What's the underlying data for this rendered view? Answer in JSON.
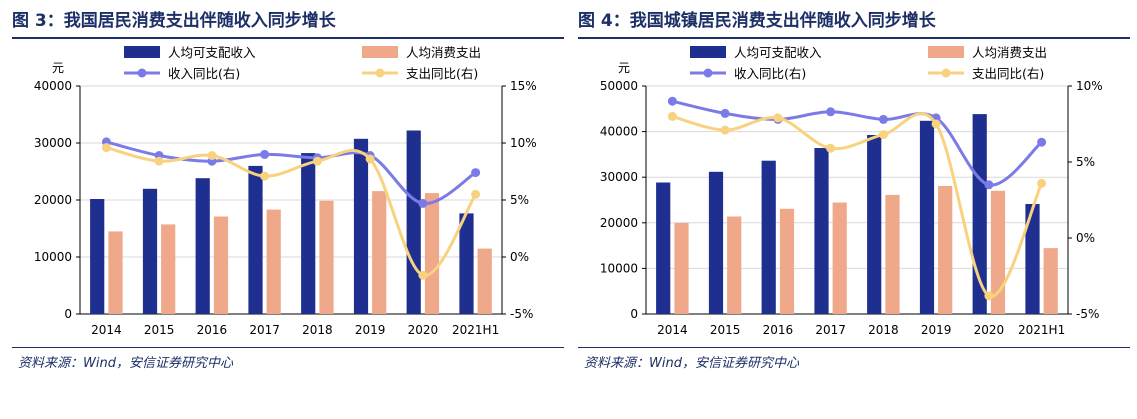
{
  "panels": [
    {
      "title": "图 3：我国居民消费支出伴随收入同步增长",
      "source": "资料来源：Wind，安信证券研究中心"
    },
    {
      "title": "图 4：我国城镇居民消费支出伴随收入同步增长",
      "source": "资料来源：Wind，安信证券研究中心"
    }
  ],
  "chart_data": [
    {
      "type": "bar",
      "title": "图 3：我国居民消费支出伴随收入同步增长",
      "ylabel": "元",
      "categories": [
        "2014",
        "2015",
        "2016",
        "2017",
        "2018",
        "2019",
        "2020",
        "2021H1"
      ],
      "ylim": [
        0,
        40000
      ],
      "yticks": [
        "0",
        "10000",
        "20000",
        "30000",
        "40000"
      ],
      "y2lim": [
        -5,
        15
      ],
      "y2ticks": [
        "-5%",
        "0%",
        "5%",
        "10%",
        "15%"
      ],
      "legend_position": "top",
      "series": [
        {
          "name": "人均可支配收入",
          "kind": "bar",
          "axis": "left",
          "color": "#1f2f8f",
          "values": [
            20167,
            21966,
            23821,
            25974,
            28228,
            30733,
            32189,
            17642
          ]
        },
        {
          "name": "人均消费支出",
          "kind": "bar",
          "axis": "left",
          "color": "#f0a88a",
          "values": [
            14491,
            15712,
            17111,
            18322,
            19853,
            21559,
            21210,
            11471
          ]
        },
        {
          "name": "收入同比(右)",
          "kind": "line",
          "axis": "right",
          "color": "#7b7be8",
          "values": [
            10.1,
            8.9,
            8.4,
            9.0,
            8.7,
            8.9,
            4.7,
            7.4
          ]
        },
        {
          "name": "支出同比(右)",
          "kind": "line",
          "axis": "right",
          "color": "#f8d27f",
          "values": [
            9.6,
            8.4,
            8.9,
            7.1,
            8.4,
            8.6,
            -1.6,
            5.5
          ]
        }
      ]
    },
    {
      "type": "bar",
      "title": "图 4：我国城镇居民消费支出伴随收入同步增长",
      "ylabel": "元",
      "categories": [
        "2014",
        "2015",
        "2016",
        "2017",
        "2018",
        "2019",
        "2020",
        "2021H1"
      ],
      "ylim": [
        0,
        50000
      ],
      "yticks": [
        "0",
        "10000",
        "20000",
        "30000",
        "40000",
        "50000"
      ],
      "y2lim": [
        -5,
        10
      ],
      "y2ticks": [
        "-5%",
        "0%",
        "5%",
        "10%"
      ],
      "legend_position": "top",
      "series": [
        {
          "name": "人均可支配收入",
          "kind": "bar",
          "axis": "left",
          "color": "#1f2f8f",
          "values": [
            28844,
            31195,
            33616,
            36396,
            39251,
            42359,
            43834,
            24125
          ]
        },
        {
          "name": "人均消费支出",
          "kind": "bar",
          "axis": "left",
          "color": "#f0a88a",
          "values": [
            19968,
            21392,
            23079,
            24445,
            26112,
            28063,
            27007,
            14460
          ]
        },
        {
          "name": "收入同比(右)",
          "kind": "line",
          "axis": "right",
          "color": "#7b7be8",
          "values": [
            9.0,
            8.2,
            7.8,
            8.3,
            7.8,
            7.9,
            3.5,
            6.3
          ]
        },
        {
          "name": "支出同比(右)",
          "kind": "line",
          "axis": "right",
          "color": "#f8d27f",
          "values": [
            8.0,
            7.1,
            7.9,
            5.9,
            6.8,
            7.5,
            -3.8,
            3.6
          ]
        }
      ]
    }
  ]
}
